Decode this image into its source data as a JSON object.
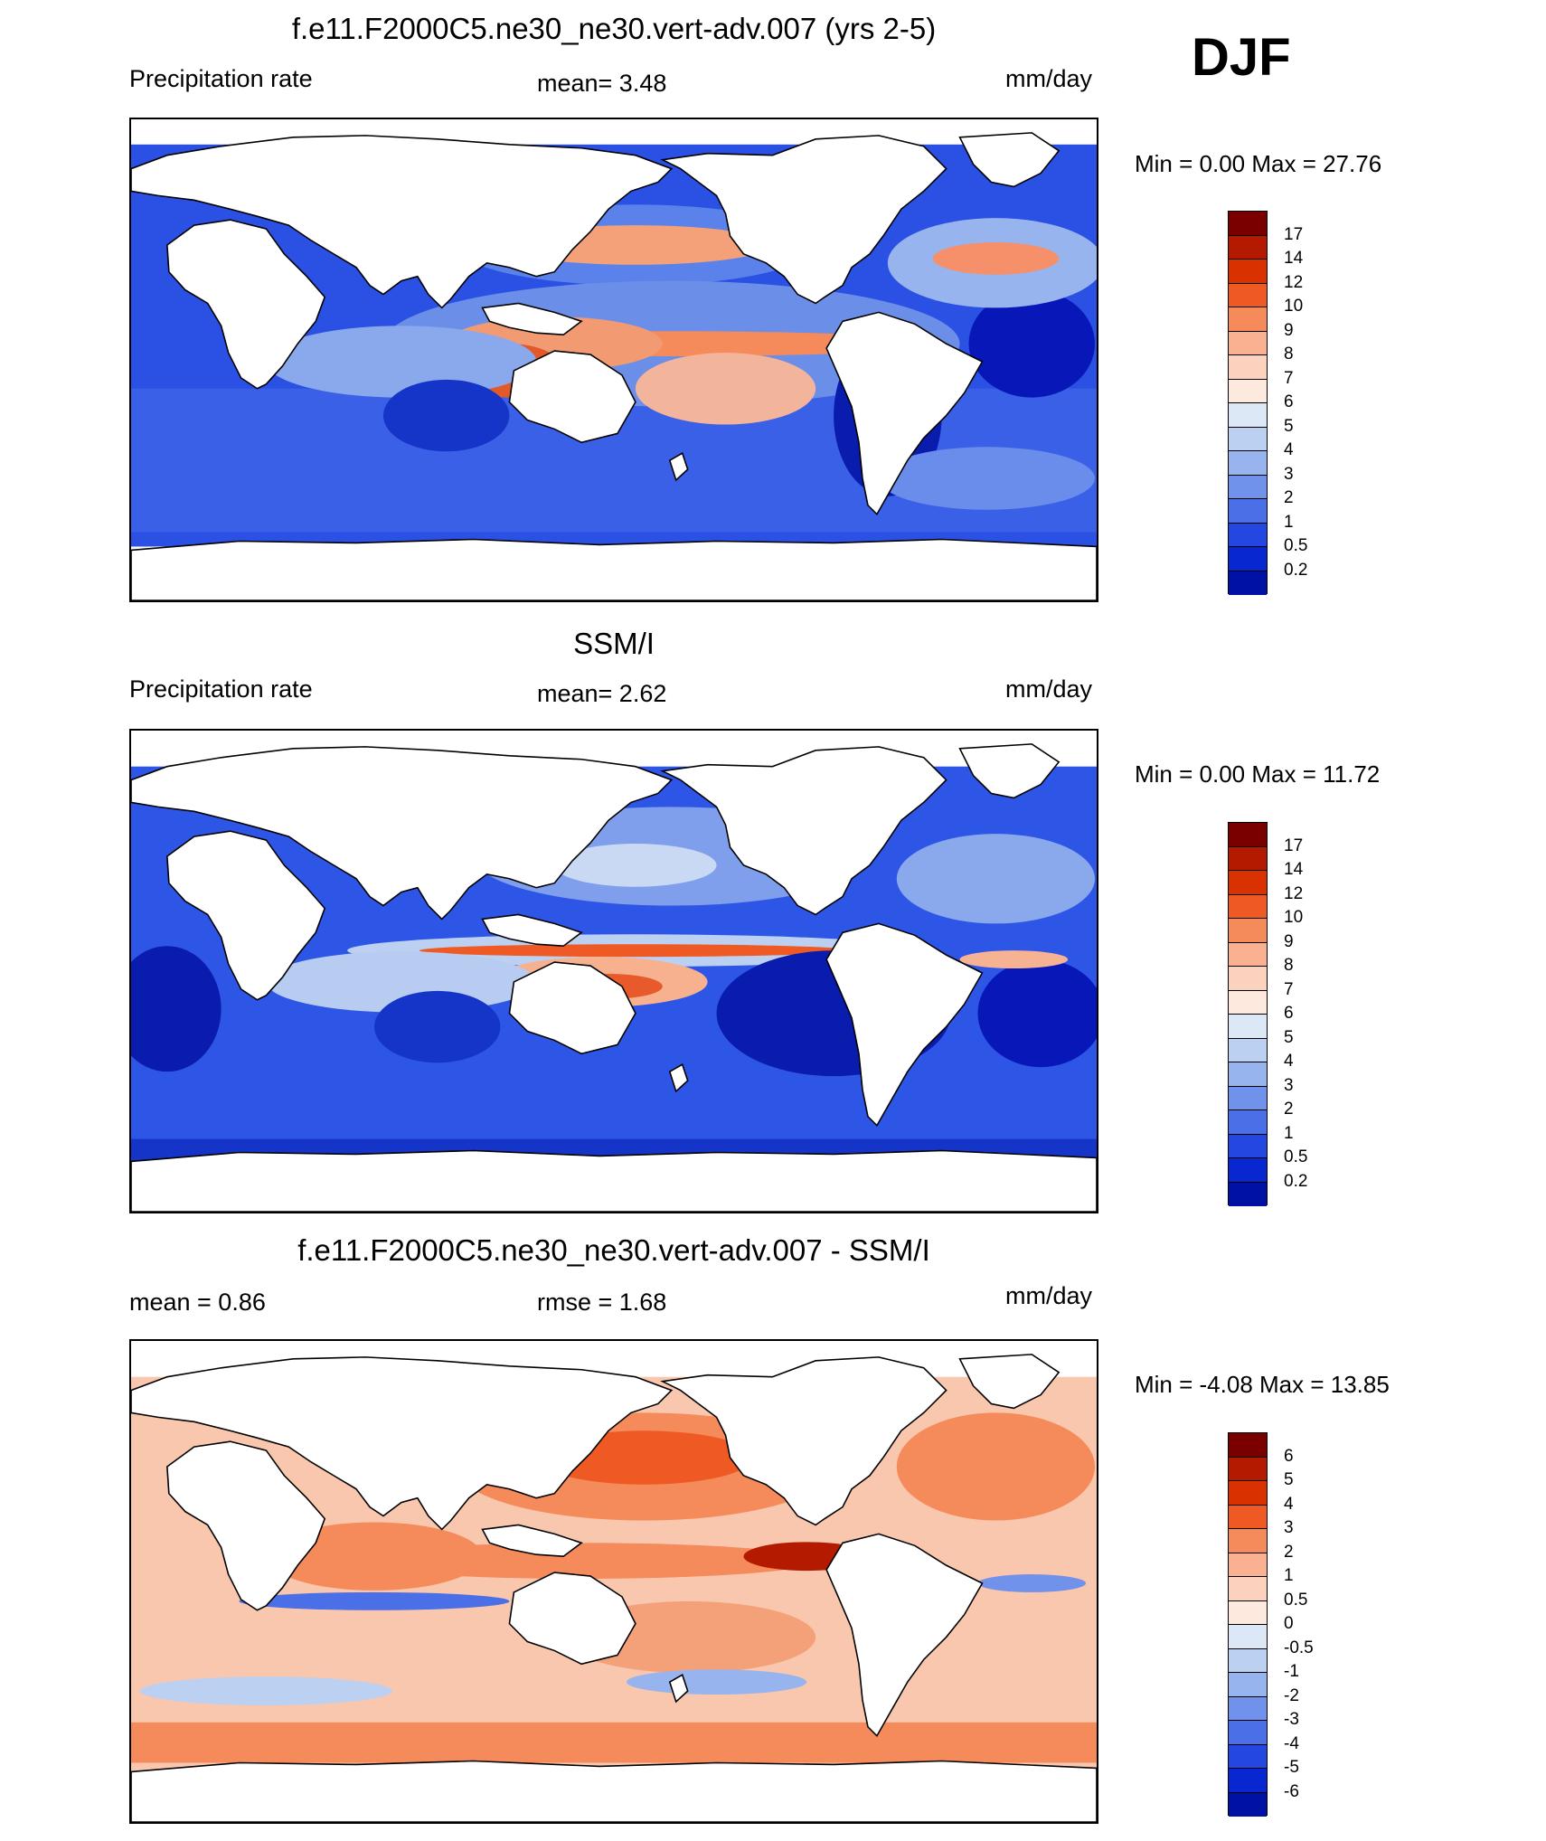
{
  "season": "DJF",
  "panels": [
    {
      "title": "f.e11.F2000C5.ne30_ne30.vert-adv.007 (yrs 2-5)",
      "left_label": "Precipitation rate",
      "center_label": "mean=   3.48",
      "right_label": "mm/day",
      "minmax": "Min =   0.00 Max =  27.76",
      "colorbar_labels": [
        "17",
        "14",
        "12",
        "10",
        "9",
        "8",
        "7",
        "6",
        "5",
        "4",
        "3",
        "2",
        "1",
        "0.5",
        "0.2"
      ],
      "colorbar_colors": [
        "#7a0000",
        "#b31a00",
        "#d93200",
        "#ef5a24",
        "#f58a5a",
        "#f9b191",
        "#fbd2bd",
        "#fde9de",
        "#dde8f6",
        "#bcd0f2",
        "#98b4ee",
        "#7192ea",
        "#4b6fe6",
        "#2347e0",
        "#0827d1",
        "#0012a3"
      ]
    },
    {
      "title": "SSM/I",
      "left_label": "Precipitation rate",
      "center_label": "mean=   2.62",
      "right_label": "mm/day",
      "minmax": "Min =   0.00 Max =  11.72",
      "colorbar_labels": [
        "17",
        "14",
        "12",
        "10",
        "9",
        "8",
        "7",
        "6",
        "5",
        "4",
        "3",
        "2",
        "1",
        "0.5",
        "0.2"
      ],
      "colorbar_colors": [
        "#7a0000",
        "#b31a00",
        "#d93200",
        "#ef5a24",
        "#f58a5a",
        "#f9b191",
        "#fbd2bd",
        "#fde9de",
        "#dde8f6",
        "#bcd0f2",
        "#98b4ee",
        "#7192ea",
        "#4b6fe6",
        "#2347e0",
        "#0827d1",
        "#0012a3"
      ]
    },
    {
      "title": "f.e11.F2000C5.ne30_ne30.vert-adv.007 - SSM/I",
      "left_label": "mean =   0.86",
      "center_label": "rmse =    1.68",
      "right_label": "mm/day",
      "minmax": "Min =  -4.08 Max =  13.85",
      "colorbar_labels": [
        "6",
        "5",
        "4",
        "3",
        "2",
        "1",
        "0.5",
        "0",
        "-0.5",
        "-1",
        "-2",
        "-3",
        "-4",
        "-5",
        "-6"
      ],
      "colorbar_colors": [
        "#7a0000",
        "#b31a00",
        "#d93200",
        "#ef5a24",
        "#f58a5a",
        "#f9b191",
        "#fbd2bd",
        "#fde9de",
        "#dde8f6",
        "#bcd0f2",
        "#98b4ee",
        "#7192ea",
        "#4b6fe6",
        "#2347e0",
        "#0827d1",
        "#0012a3"
      ]
    }
  ]
}
